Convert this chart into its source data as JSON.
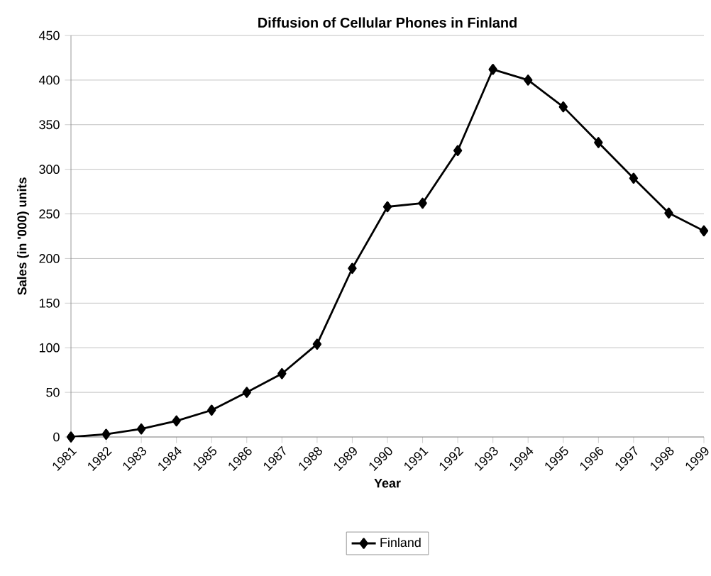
{
  "chart_data": {
    "type": "line",
    "title": "Diffusion of Cellular Phones in Finland",
    "xlabel": "Year",
    "ylabel": "Sales (in '000) units",
    "categories": [
      "1981",
      "1982",
      "1983",
      "1984",
      "1985",
      "1986",
      "1987",
      "1988",
      "1989",
      "1990",
      "1991",
      "1992",
      "1993",
      "1994",
      "1995",
      "1996",
      "1997",
      "1998",
      "1999"
    ],
    "series": [
      {
        "name": "Finland",
        "color": "#000000",
        "values": [
          0,
          3,
          9,
          18,
          30,
          50,
          71,
          104,
          189,
          258,
          262,
          321,
          412,
          400,
          370,
          330,
          290,
          251,
          231
        ]
      }
    ],
    "ylim": [
      0,
      450
    ],
    "yticks": [
      0,
      50,
      100,
      150,
      200,
      250,
      300,
      350,
      400,
      450
    ],
    "grid": "y",
    "legend": "bottom",
    "marker": "diamond",
    "line_style": "solid"
  }
}
